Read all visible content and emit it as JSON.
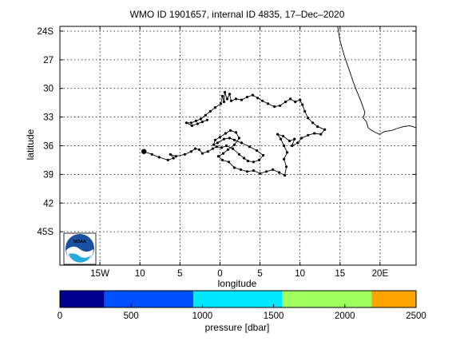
{
  "chart_data": {
    "type": "line",
    "title": "WMO ID 1901657, internal ID 4835, 17–Dec–2020",
    "xlabel": "longitude",
    "ylabel": "latitude",
    "xlim": [
      -20,
      24.5
    ],
    "ylim": [
      -48.5,
      -23.5
    ],
    "x_ticks": [
      {
        "value": -15,
        "label": "15W"
      },
      {
        "value": -10,
        "label": "10"
      },
      {
        "value": -5,
        "label": "5"
      },
      {
        "value": 0,
        "label": "0"
      },
      {
        "value": 5,
        "label": "5"
      },
      {
        "value": 10,
        "label": "10"
      },
      {
        "value": 15,
        "label": "15"
      },
      {
        "value": 20,
        "label": "20E"
      }
    ],
    "y_ticks": [
      {
        "value": -24,
        "label": "24S"
      },
      {
        "value": -27,
        "label": "27"
      },
      {
        "value": -30,
        "label": "30"
      },
      {
        "value": -33,
        "label": "33"
      },
      {
        "value": -36,
        "label": "36"
      },
      {
        "value": -39,
        "label": "39"
      },
      {
        "value": -42,
        "label": "42"
      },
      {
        "value": -45,
        "label": "45S"
      }
    ],
    "grid": true,
    "series": [
      {
        "name": "",
        "color": "#000000",
        "points": [
          [
            -9.5,
            -36.6
          ],
          [
            -8.5,
            -36.9
          ],
          [
            -7.6,
            -37.2
          ],
          [
            -6.5,
            -37.5
          ],
          [
            -5.8,
            -37.3
          ],
          [
            -6.2,
            -36.9
          ],
          [
            -5.5,
            -37.1
          ],
          [
            -4.4,
            -36.9
          ],
          [
            -3.6,
            -36.6
          ],
          [
            -3.1,
            -36.3
          ],
          [
            -2.6,
            -36.4
          ],
          [
            -2.2,
            -36.8
          ],
          [
            -1.5,
            -36.6
          ],
          [
            -0.9,
            -36.3
          ],
          [
            -0.4,
            -36.1
          ],
          [
            0.2,
            -36.2
          ],
          [
            0.8,
            -36.0
          ],
          [
            1.6,
            -36.3
          ],
          [
            2.4,
            -36.9
          ],
          [
            3.0,
            -37.3
          ],
          [
            3.5,
            -37.6
          ],
          [
            4.2,
            -37.7
          ],
          [
            4.9,
            -37.5
          ],
          [
            5.4,
            -37.0
          ],
          [
            4.6,
            -36.5
          ],
          [
            3.7,
            -36.1
          ],
          [
            2.7,
            -35.7
          ],
          [
            1.8,
            -35.4
          ],
          [
            1.2,
            -35.2
          ],
          [
            0.5,
            -35.3
          ],
          [
            -0.3,
            -35.7
          ],
          [
            -0.8,
            -35.9
          ],
          [
            -0.6,
            -35.4
          ],
          [
            0.0,
            -35.1
          ],
          [
            0.7,
            -34.7
          ],
          [
            1.3,
            -34.4
          ],
          [
            2.0,
            -34.6
          ],
          [
            2.4,
            -35.2
          ],
          [
            1.8,
            -35.9
          ],
          [
            1.0,
            -36.4
          ],
          [
            0.4,
            -36.8
          ],
          [
            -0.2,
            -37.1
          ],
          [
            0.3,
            -37.5
          ],
          [
            1.1,
            -37.7
          ],
          [
            1.8,
            -38.3
          ],
          [
            2.6,
            -38.5
          ],
          [
            3.4,
            -38.7
          ],
          [
            4.2,
            -38.6
          ],
          [
            5.0,
            -38.9
          ],
          [
            5.8,
            -38.7
          ],
          [
            6.6,
            -38.5
          ],
          [
            7.4,
            -38.8
          ],
          [
            8.1,
            -39.1
          ],
          [
            8.3,
            -38.2
          ],
          [
            8.0,
            -37.4
          ],
          [
            8.4,
            -36.7
          ],
          [
            8.0,
            -36.0
          ],
          [
            7.6,
            -35.3
          ],
          [
            7.2,
            -34.8
          ],
          [
            7.9,
            -35.0
          ],
          [
            8.7,
            -35.5
          ],
          [
            9.3,
            -35.3
          ],
          [
            9.0,
            -36.0
          ],
          [
            9.7,
            -35.7
          ],
          [
            10.2,
            -35.2
          ],
          [
            11.0,
            -34.9
          ],
          [
            11.8,
            -34.7
          ],
          [
            12.6,
            -34.8
          ],
          [
            13.1,
            -34.3
          ],
          [
            12.2,
            -34.0
          ],
          [
            11.6,
            -33.6
          ],
          [
            11.0,
            -33.1
          ],
          [
            10.6,
            -32.4
          ],
          [
            10.3,
            -31.7
          ],
          [
            10.0,
            -31.2
          ],
          [
            9.4,
            -31.4
          ],
          [
            8.8,
            -31.1
          ],
          [
            8.2,
            -31.4
          ],
          [
            7.5,
            -31.8
          ],
          [
            6.8,
            -31.9
          ],
          [
            6.0,
            -31.6
          ],
          [
            5.3,
            -31.3
          ],
          [
            4.7,
            -31.0
          ],
          [
            4.1,
            -30.7
          ],
          [
            3.4,
            -30.9
          ],
          [
            2.7,
            -31.2
          ],
          [
            2.0,
            -31.1
          ],
          [
            1.4,
            -31.3
          ],
          [
            1.2,
            -30.6
          ],
          [
            0.9,
            -31.1
          ],
          [
            0.6,
            -30.4
          ],
          [
            0.5,
            -31.4
          ],
          [
            0.3,
            -30.8
          ],
          [
            0.1,
            -31.6
          ],
          [
            -0.6,
            -32.0
          ],
          [
            -1.2,
            -32.4
          ],
          [
            -1.8,
            -32.8
          ],
          [
            -2.4,
            -33.2
          ],
          [
            -3.0,
            -33.4
          ],
          [
            -3.6,
            -33.6
          ],
          [
            -4.2,
            -33.6
          ],
          [
            -3.5,
            -33.9
          ],
          [
            -2.8,
            -33.7
          ],
          [
            -2.2,
            -33.5
          ],
          [
            -1.6,
            -33.3
          ]
        ]
      }
    ],
    "start_marker": [
      -9.5,
      -36.6
    ],
    "coastline": [
      [
        14.7,
        -23.5
      ],
      [
        15.0,
        -25.0
      ],
      [
        15.5,
        -26.5
      ],
      [
        16.2,
        -28.2
      ],
      [
        16.6,
        -29.2
      ],
      [
        17.1,
        -30.3
      ],
      [
        17.6,
        -31.3
      ],
      [
        18.1,
        -32.5
      ],
      [
        17.9,
        -33.1
      ],
      [
        18.3,
        -33.5
      ],
      [
        18.5,
        -34.1
      ],
      [
        18.8,
        -34.3
      ],
      [
        19.2,
        -34.5
      ],
      [
        19.9,
        -34.8
      ],
      [
        20.6,
        -34.5
      ],
      [
        21.4,
        -34.4
      ],
      [
        22.1,
        -34.2
      ],
      [
        22.9,
        -34.0
      ],
      [
        23.7,
        -33.9
      ],
      [
        24.5,
        -34.1
      ]
    ],
    "colorbar": {
      "label": "pressure [dbar]",
      "ticks": [
        "0",
        "500",
        "1000",
        "1500",
        "2000",
        "2500"
      ],
      "range": [
        0,
        2500
      ],
      "bins": [
        {
          "from": 0,
          "to": 312,
          "color": "#00008f"
        },
        {
          "from": 312,
          "to": 937,
          "color": "#0050ff"
        },
        {
          "from": 937,
          "to": 1562,
          "color": "#00e8ff"
        },
        {
          "from": 1562,
          "to": 2187,
          "color": "#9fff5f"
        },
        {
          "from": 2187,
          "to": 2500,
          "color": "#ffa300"
        }
      ]
    },
    "logo": {
      "text": "NOAA"
    }
  }
}
